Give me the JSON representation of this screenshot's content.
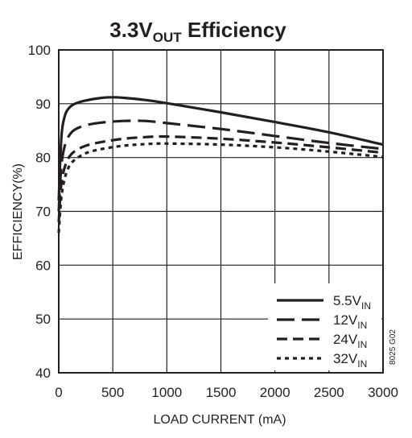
{
  "chart_data": {
    "type": "line",
    "title": {
      "main": "3.3V",
      "sub": "OUT",
      "rest": " Efficiency"
    },
    "xlabel": "LOAD CURRENT (mA)",
    "ylabel": "EFFICIENCY(%)",
    "xlim": [
      0,
      3000
    ],
    "ylim": [
      40,
      100
    ],
    "xticks": [
      0,
      500,
      1000,
      1500,
      2000,
      2500,
      3000
    ],
    "yticks": [
      40,
      50,
      60,
      70,
      80,
      90,
      100
    ],
    "grid": true,
    "legend_position": "bottom-right",
    "figure_code": "8025 G02",
    "series": [
      {
        "name": "5.5V",
        "name_sub": "IN",
        "dash": "solid",
        "x": [
          0,
          15,
          30,
          60,
          100,
          150,
          250,
          400,
          500,
          600,
          800,
          1000,
          1500,
          2000,
          2500,
          3000
        ],
        "y": [
          72,
          80,
          85,
          88,
          89.3,
          90,
          90.6,
          91.1,
          91.2,
          91.1,
          90.7,
          90.1,
          88.4,
          86.6,
          84.7,
          82.4
        ]
      },
      {
        "name": "12V",
        "name_sub": "IN",
        "dash": "longdash",
        "x": [
          0,
          15,
          30,
          60,
          100,
          150,
          250,
          400,
          600,
          800,
          1000,
          1500,
          2000,
          2500,
          3000
        ],
        "y": [
          70,
          76,
          79.5,
          82.5,
          84.2,
          85.2,
          86,
          86.5,
          86.8,
          86.8,
          86.4,
          85.3,
          84,
          82.7,
          81.6
        ]
      },
      {
        "name": "24V",
        "name_sub": "IN",
        "dash": "mediumdash",
        "x": [
          0,
          15,
          30,
          60,
          100,
          150,
          250,
          400,
          600,
          800,
          1000,
          1500,
          2000,
          2500,
          3000
        ],
        "y": [
          68,
          73,
          76,
          78.5,
          80.2,
          81.2,
          82.2,
          82.9,
          83.5,
          83.8,
          83.9,
          83.5,
          82.8,
          81.9,
          80.9
        ]
      },
      {
        "name": "32V",
        "name_sub": "IN",
        "dash": "shortdash",
        "x": [
          0,
          15,
          30,
          60,
          100,
          150,
          250,
          400,
          600,
          800,
          1000,
          1500,
          2000,
          2500,
          3000
        ],
        "y": [
          66,
          70.5,
          73.5,
          76.5,
          78.5,
          79.6,
          80.8,
          81.6,
          82.2,
          82.5,
          82.6,
          82.4,
          81.9,
          81.1,
          80.1
        ]
      }
    ]
  }
}
